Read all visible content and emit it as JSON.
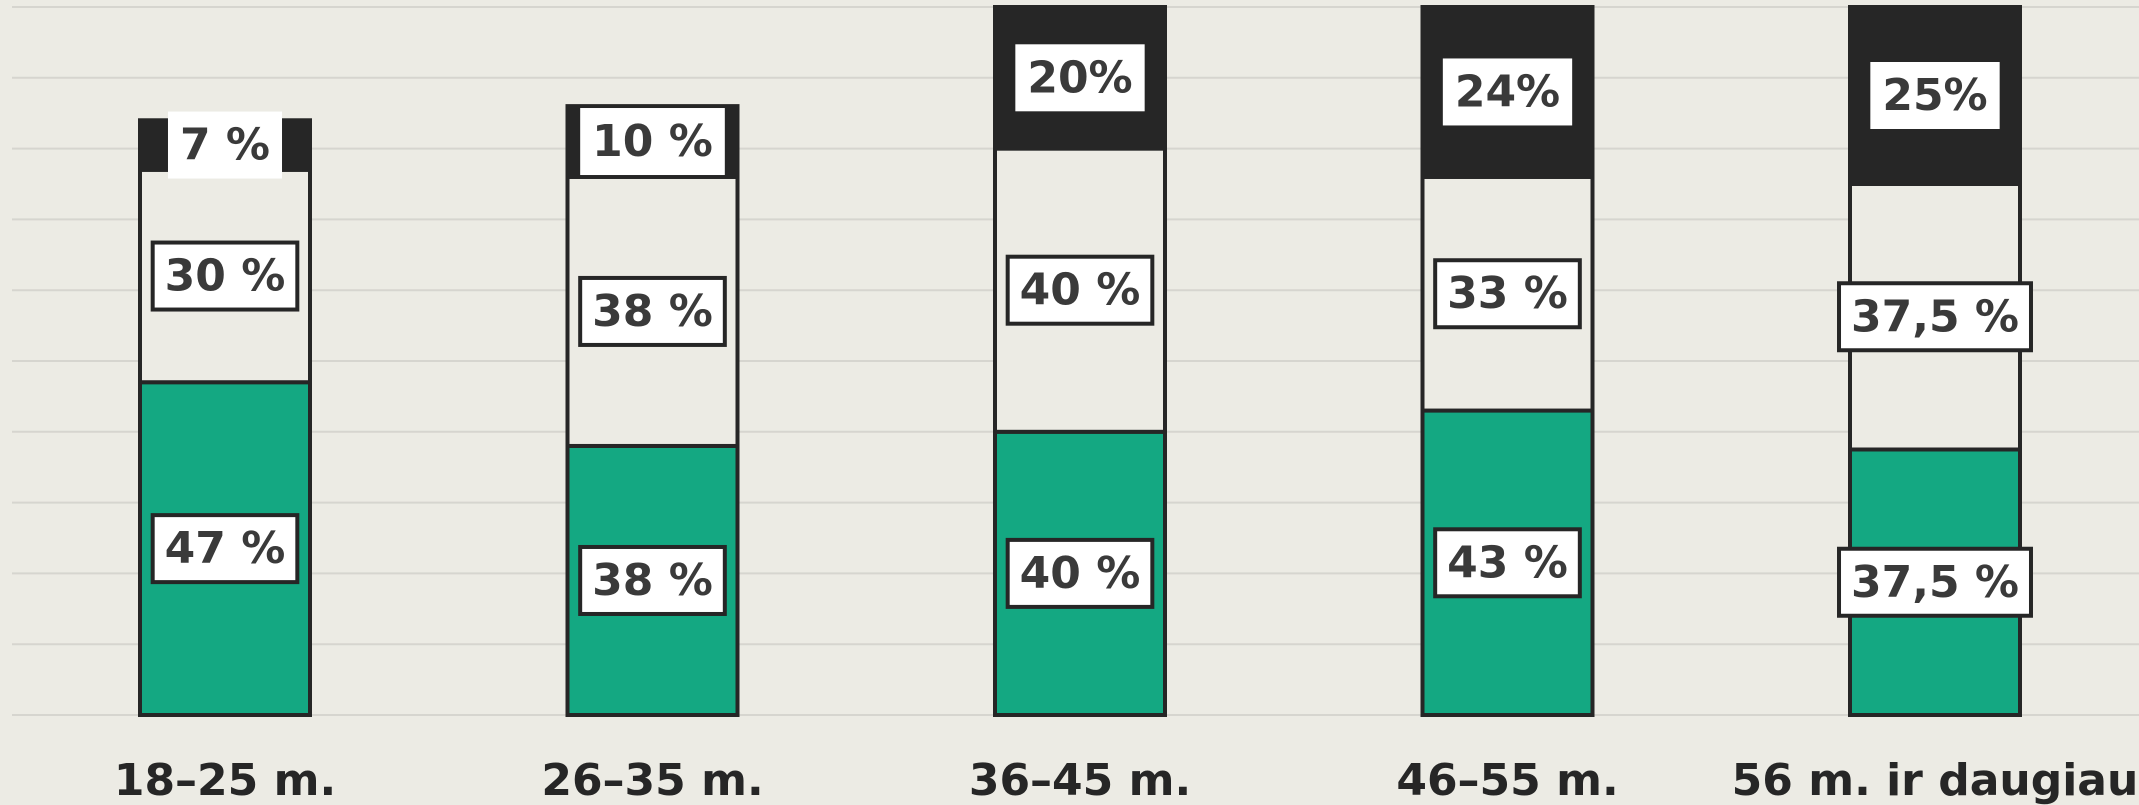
{
  "chart_data": {
    "type": "bar",
    "stacked": true,
    "categories": [
      "18–25 m.",
      "26–35 m.",
      "36–45 m.",
      "46–55 m.",
      "56 m. ir daugiau"
    ],
    "series": [
      {
        "color": "#14a882",
        "values": [
          47,
          38,
          40,
          43,
          37.5
        ],
        "labels": [
          "47 %",
          "38 %",
          "40 %",
          "43 %",
          "37,5 %"
        ]
      },
      {
        "color": "#ecebe4",
        "values": [
          30,
          38,
          40,
          33,
          37.5
        ],
        "labels": [
          "30 %",
          "38 %",
          "40 %",
          "33 %",
          "37,5 %"
        ]
      },
      {
        "color": "#262626",
        "values": [
          7,
          10,
          20,
          24,
          25
        ],
        "labels": [
          "7 %",
          "10 %",
          "20%",
          "24%",
          "25%"
        ]
      }
    ],
    "ylim": [
      0,
      100
    ],
    "grid": true,
    "legend": "none"
  }
}
